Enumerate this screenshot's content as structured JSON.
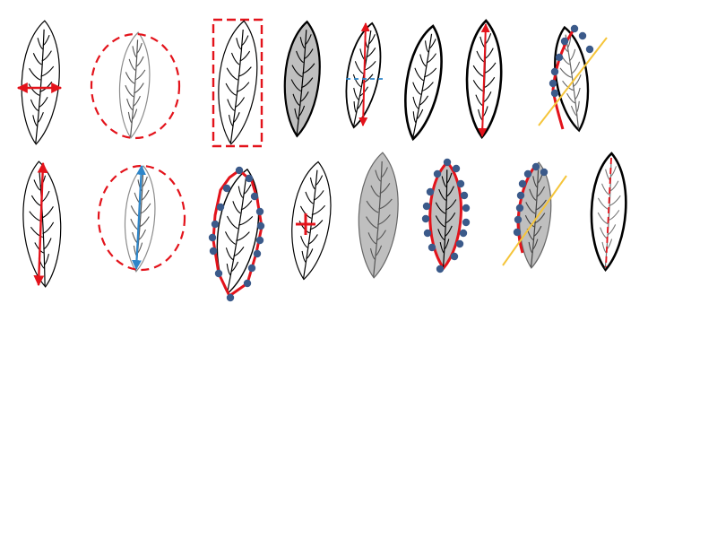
{
  "colors": {
    "outline": "#000000",
    "outline_light": "#8c8c8c",
    "leaf_fill": "#ffffff",
    "leaf_fill_shaded": "#bfbfbf",
    "accent_red": "#e3131b",
    "accent_blue": "#2e86c9",
    "landmark_dot": "#3b5a8a",
    "cut_line": "#f5c53b"
  },
  "panels": [
    {
      "id": "leaf-width-measure",
      "icon": "leaf-width-arrow-icon"
    },
    {
      "id": "leaf-enclosing-circle",
      "icon": "leaf-circle-icon"
    },
    {
      "id": "leaf-bounding-box",
      "icon": "leaf-box-icon"
    },
    {
      "id": "leaf-area-fill",
      "icon": "leaf-filled-icon"
    },
    {
      "id": "leaf-length-and-width",
      "icon": "leaf-cross-measure-icon"
    },
    {
      "id": "leaf-perimeter-outline",
      "icon": "leaf-bold-outline-icon"
    },
    {
      "id": "leaf-length-measure",
      "icon": "leaf-length-arrow-icon"
    },
    {
      "id": "leaf-landmarks-with-cut",
      "icon": "leaf-landmark-cut-icon"
    },
    {
      "id": "leaf-length-red",
      "icon": "leaf-length-red-icon"
    },
    {
      "id": "leaf-circle-diameter",
      "icon": "leaf-circle-diameter-icon"
    },
    {
      "id": "leaf-landmark-polygon",
      "icon": "leaf-polygon-icon"
    },
    {
      "id": "leaf-centroid",
      "icon": "leaf-centroid-icon"
    },
    {
      "id": "leaf-shaded-area",
      "icon": "leaf-shaded-icon"
    },
    {
      "id": "leaf-shaded-landmarks",
      "icon": "leaf-shaded-landmark-icon"
    },
    {
      "id": "leaf-shaded-cut",
      "icon": "leaf-shaded-cut-icon"
    },
    {
      "id": "leaf-midrib-dashed",
      "icon": "leaf-midrib-icon"
    }
  ]
}
